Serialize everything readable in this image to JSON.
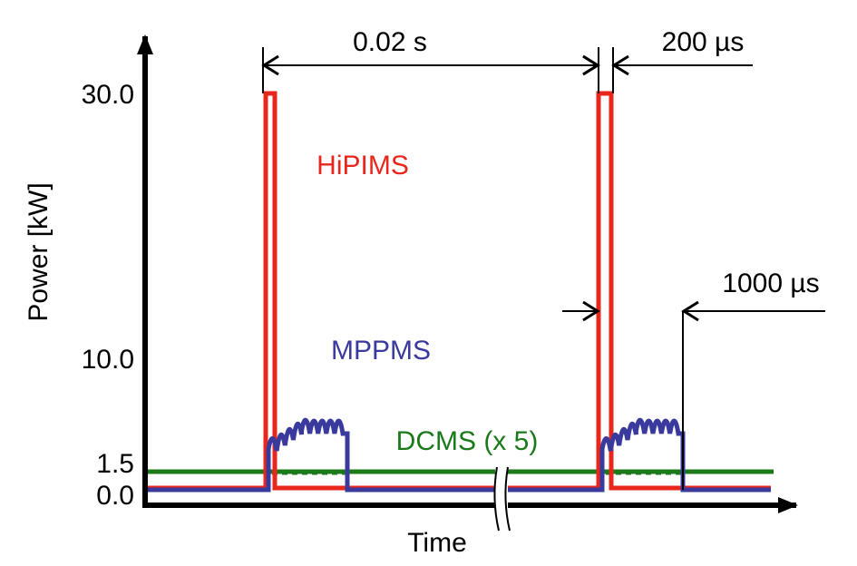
{
  "y_axis": {
    "label": "Power [kW]",
    "ticks": [
      "30.0",
      "10.0",
      "1.5",
      "0.0"
    ]
  },
  "x_axis": {
    "label": "Time"
  },
  "traces": {
    "hipims": "HiPIMS",
    "mppms": "MPPMS",
    "dcms": "DCMS (x 5)"
  },
  "annotations": {
    "period": "0.02 s",
    "hipims_width": "200 µs",
    "mppms_width": "1000 µs"
  }
}
